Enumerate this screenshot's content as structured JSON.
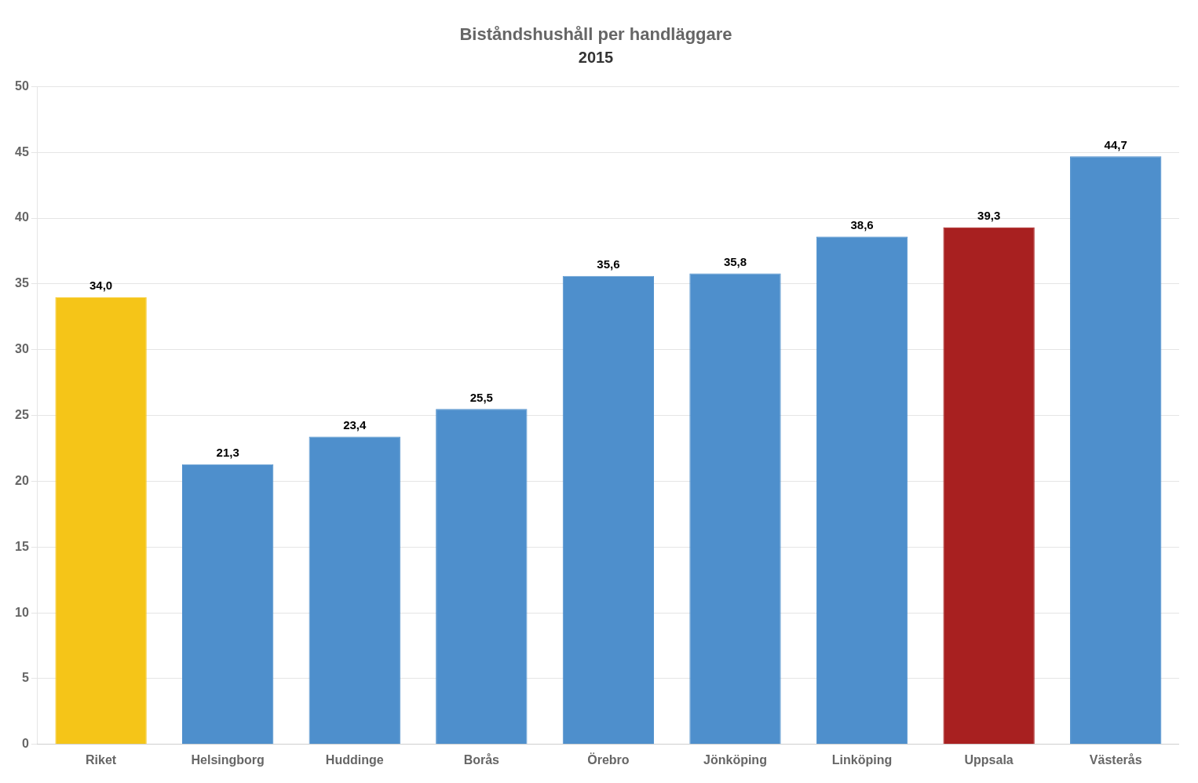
{
  "chart_data": {
    "type": "bar",
    "title": "Biståndshushåll per handläggare",
    "subtitle": "2015",
    "categories": [
      "Riket",
      "Helsingborg",
      "Huddinge",
      "Borås",
      "Örebro",
      "Jönköping",
      "Linköping",
      "Uppsala",
      "Västerås"
    ],
    "values": [
      34.0,
      21.3,
      23.4,
      25.5,
      35.6,
      35.8,
      38.6,
      39.3,
      44.7
    ],
    "value_labels": [
      "34,0",
      "21,3",
      "23,4",
      "25,5",
      "35,6",
      "35,8",
      "38,6",
      "39,3",
      "44,7"
    ],
    "colors": [
      "#F5C518",
      "#4E8FCC",
      "#4E8FCC",
      "#4E8FCC",
      "#4E8FCC",
      "#4E8FCC",
      "#4E8FCC",
      "#A82020",
      "#4E8FCC"
    ],
    "ylim": [
      0,
      50
    ],
    "yticks": [
      0,
      5,
      10,
      15,
      20,
      25,
      30,
      35,
      40,
      45,
      50
    ],
    "grid": true,
    "data_labels": true
  }
}
